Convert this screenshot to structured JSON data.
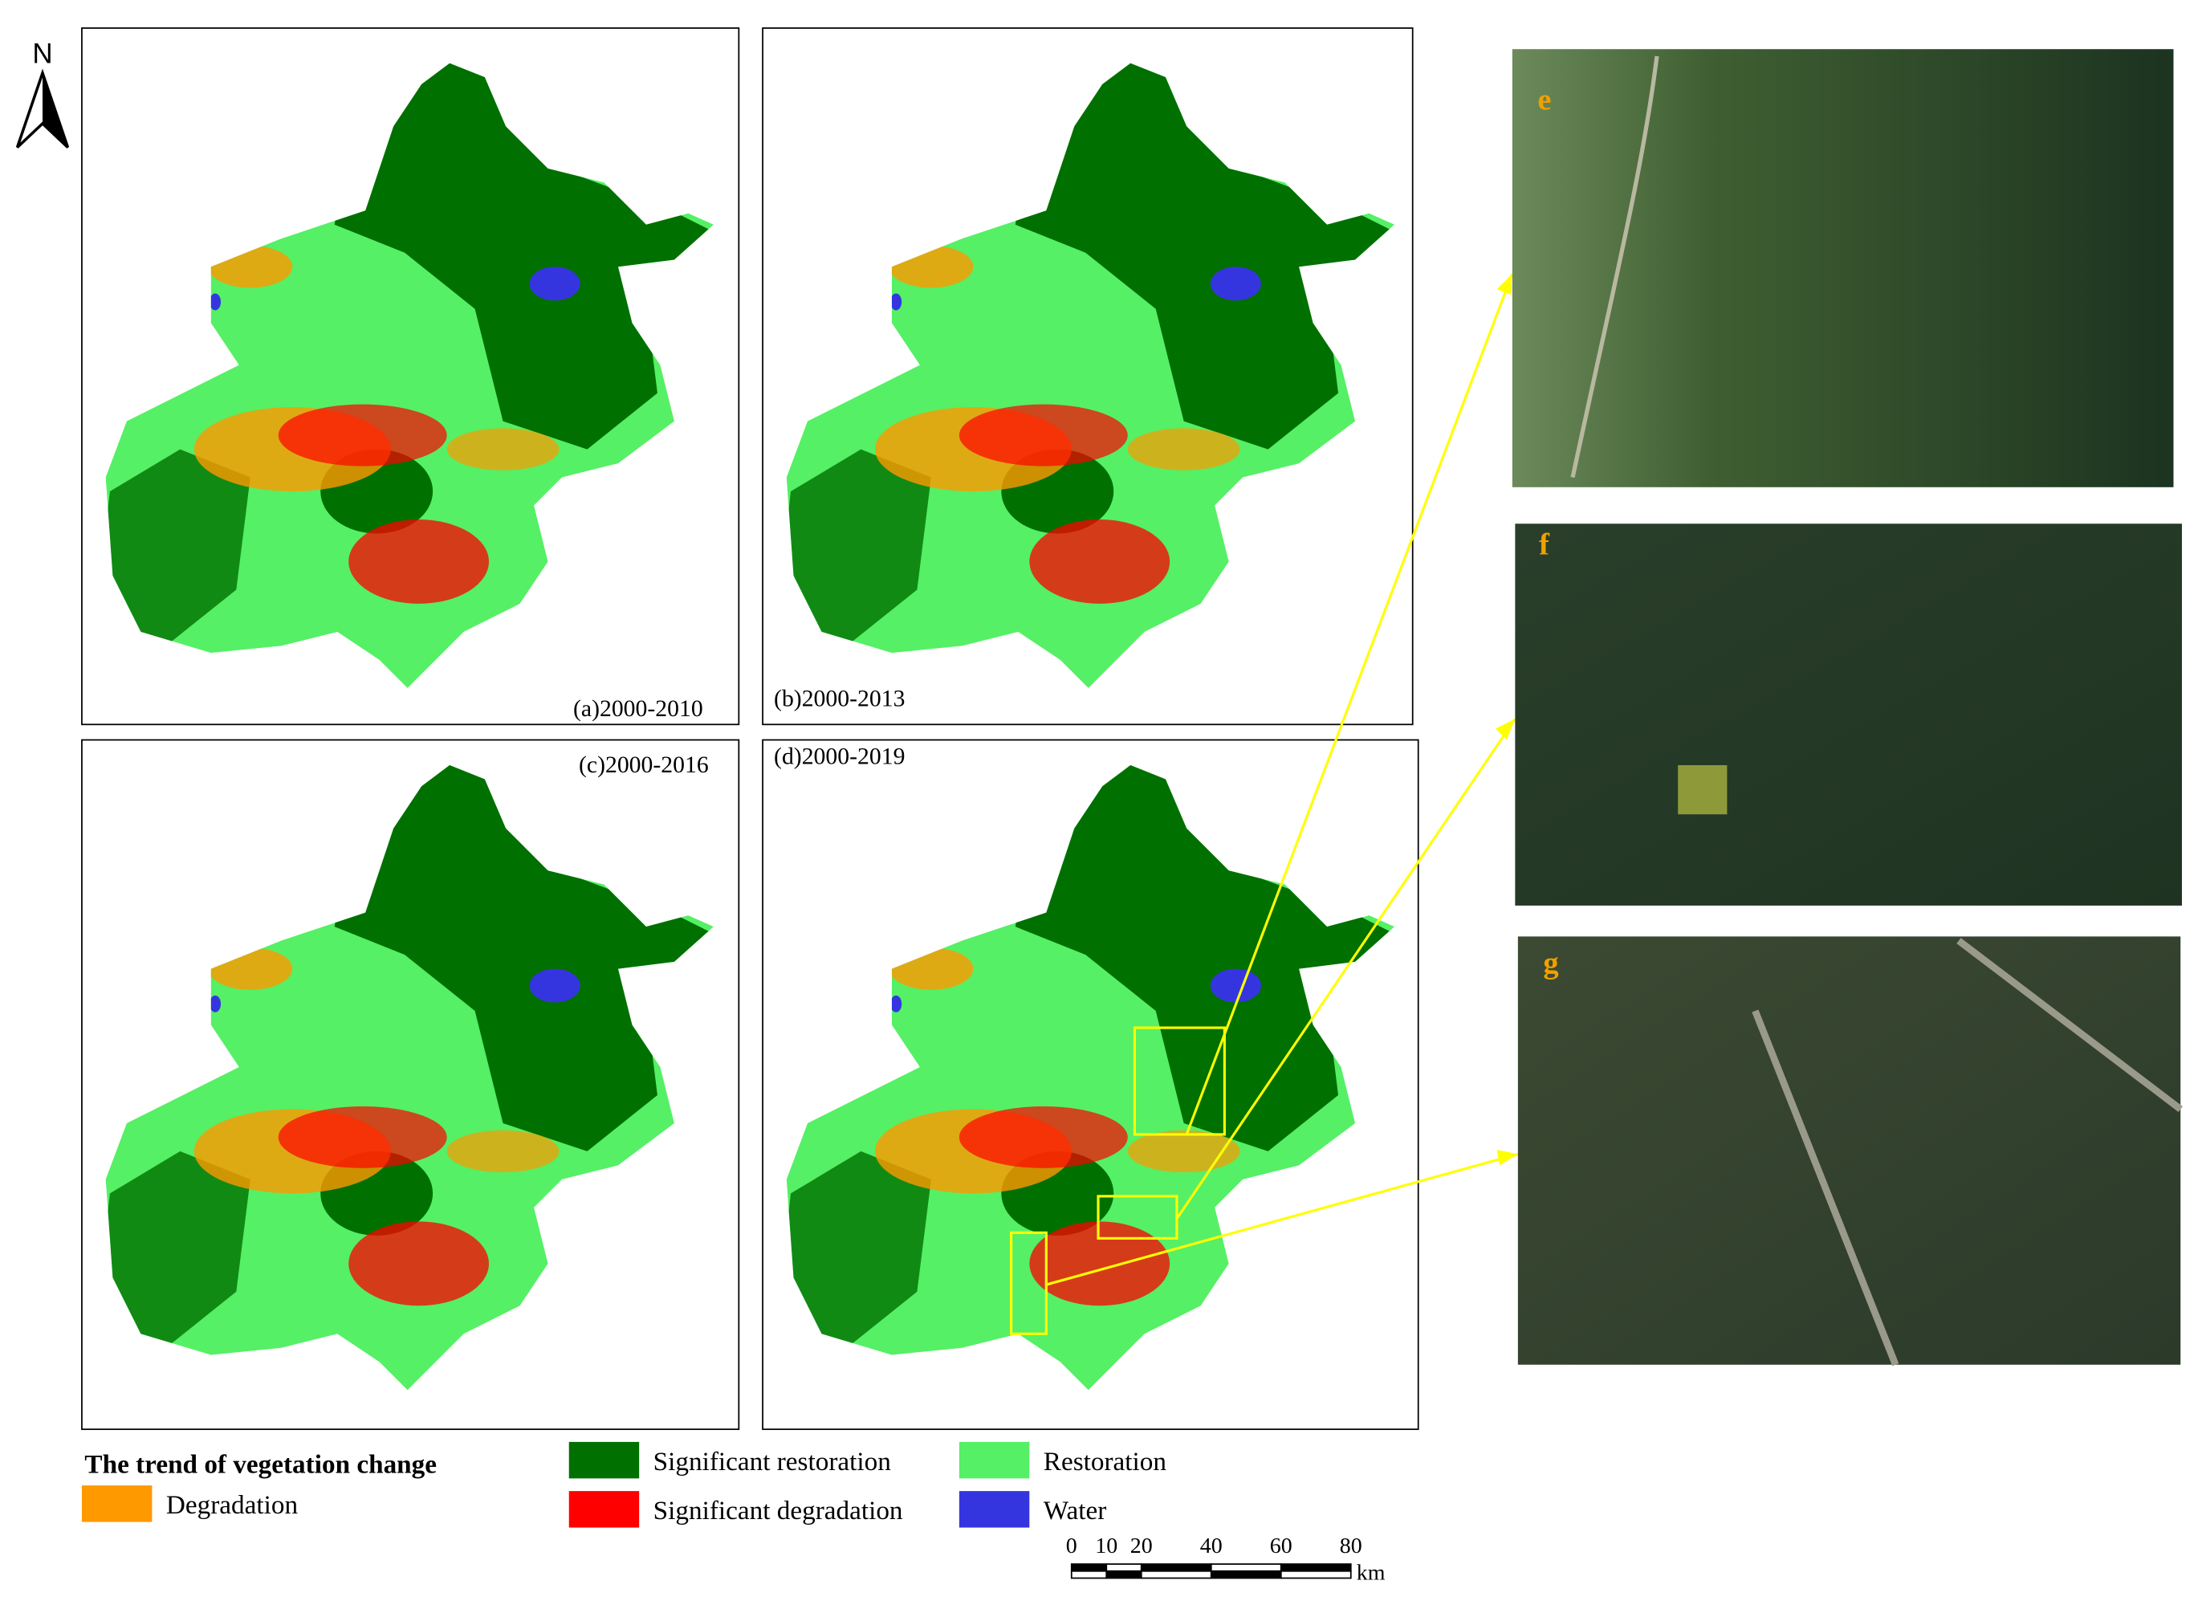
{
  "north": "N",
  "panels": [
    {
      "label": "(a)2000-2010"
    },
    {
      "label": "(b)2000-2013"
    },
    {
      "label": "(c)2000-2016"
    },
    {
      "label": "(d)2000-2019"
    }
  ],
  "legend": {
    "title": "The trend of vegetation change",
    "items": [
      {
        "name": "Degradation",
        "color": "#ff9900"
      },
      {
        "name": "Significant restoration",
        "color": "#007000"
      },
      {
        "name": "Significant degradation",
        "color": "#ff0000"
      },
      {
        "name": "Restoration",
        "color": "#55f065"
      },
      {
        "name": "Water",
        "color": "#3535e0"
      }
    ]
  },
  "scale_bar": {
    "ticks": [
      0,
      10,
      20,
      40,
      60,
      80
    ],
    "unit": "km"
  },
  "photos": [
    {
      "label": "e"
    },
    {
      "label": "f"
    },
    {
      "label": "g"
    }
  ]
}
